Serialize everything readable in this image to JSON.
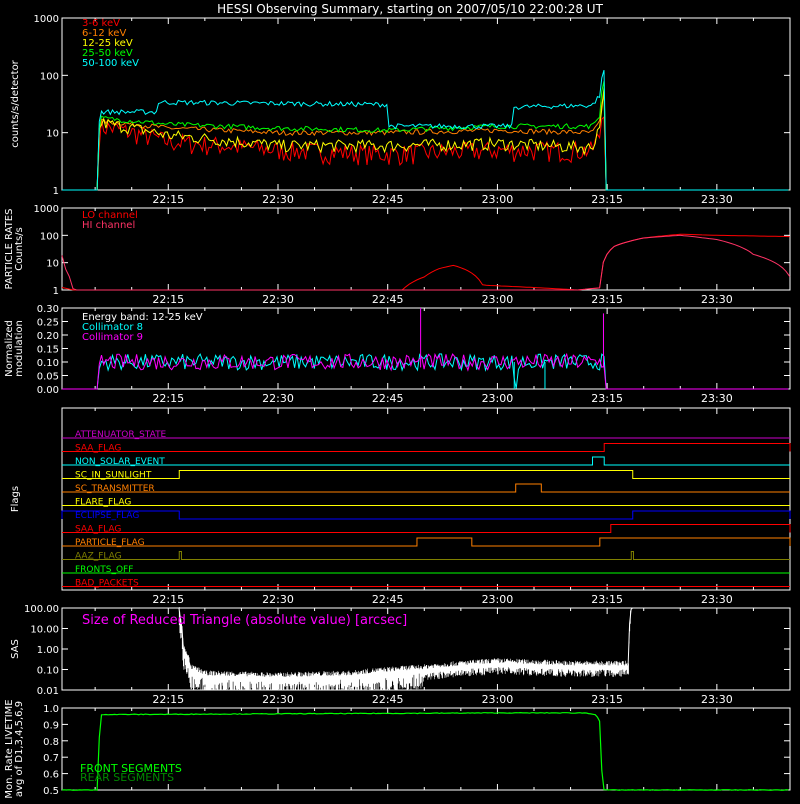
{
  "title": "HESSI Observing Summary, starting on 2007/05/10 22:00:28 UT",
  "time_axis": {
    "ticks": [
      "22:15",
      "22:30",
      "22:45",
      "23:00",
      "23:15",
      "23:30"
    ],
    "tick_minutes": [
      15,
      30,
      45,
      60,
      75,
      90
    ],
    "range_minutes": [
      0.47,
      100
    ]
  },
  "colors": {
    "c3_6": "#ff0000",
    "c6_12": "#ff7f00",
    "c12_25": "#ffff00",
    "c25_50": "#00ff00",
    "c50_100": "#00ffff",
    "lo": "#ff0000",
    "hi": "#ff3366",
    "coll8": "#00ffff",
    "coll9": "#ff00ff",
    "energy": "#ffffff",
    "sas_label": "#ff00ff",
    "front": "#00ff00",
    "rear": "#008800"
  },
  "chart_data": [
    {
      "id": "count_rates",
      "type": "line",
      "ylabel": "counts/s/detector",
      "yscale": "log",
      "ylim": [
        1,
        1000
      ],
      "y_ticks": [
        "1",
        "10",
        "100",
        "1000"
      ],
      "series": [
        {
          "name": "3-6 keV",
          "color": "#ff0000",
          "x": [
            0,
            5.5,
            5.6,
            15,
            30,
            45,
            60,
            73,
            74,
            74.6,
            74.7,
            100
          ],
          "y": [
            1,
            1,
            13,
            7,
            5,
            4.3,
            5,
            5,
            9,
            30,
            1,
            1
          ]
        },
        {
          "name": "6-12 keV",
          "color": "#ff7f00",
          "x": [
            0,
            5.5,
            5.6,
            15,
            30,
            45,
            60,
            73,
            74,
            74.6,
            74.7,
            100
          ],
          "y": [
            1,
            1,
            16,
            12,
            10,
            10,
            11,
            10,
            15,
            50,
            1,
            1
          ]
        },
        {
          "name": "12-25 keV",
          "color": "#ffff00",
          "x": [
            0,
            5.5,
            5.6,
            15,
            30,
            45,
            60,
            73,
            74,
            74.6,
            74.7,
            100
          ],
          "y": [
            1,
            1,
            15,
            9,
            6,
            6,
            6.5,
            5.5,
            13,
            55,
            1,
            1
          ]
        },
        {
          "name": "25-50 keV",
          "color": "#00ff00",
          "x": [
            0,
            5.5,
            5.6,
            15,
            30,
            45,
            60,
            73,
            74,
            74.6,
            74.7,
            100
          ],
          "y": [
            1,
            1,
            18,
            14,
            12,
            11,
            13,
            13,
            20,
            90,
            1,
            1
          ]
        },
        {
          "name": "50-100 keV",
          "color": "#00ffff",
          "x": [
            0,
            5.5,
            5.6,
            13.5,
            13.6,
            45,
            45.1,
            62,
            62.1,
            73,
            74,
            74.6,
            74.7,
            100
          ],
          "y": [
            1,
            1,
            23,
            23,
            34,
            31,
            13,
            13,
            28,
            30,
            45,
            130,
            1,
            1
          ]
        }
      ]
    },
    {
      "id": "particle_rates",
      "type": "line",
      "ylabel": "PARTICLE RATES Counts/s",
      "yscale": "log",
      "ylim": [
        1,
        1000
      ],
      "y_ticks": [
        "1",
        "10",
        "100",
        "1000"
      ],
      "series": [
        {
          "name": "LO channel",
          "color": "#ff0000",
          "x": [
            0,
            2,
            5,
            47,
            50,
            52,
            54,
            56,
            58,
            71,
            74,
            76,
            80,
            85,
            90,
            100
          ],
          "y": [
            1.3,
            1,
            1,
            1,
            3,
            6,
            8,
            5,
            1.5,
            1,
            1.2,
            40,
            80,
            110,
            100,
            90
          ]
        },
        {
          "name": "HI channel",
          "color": "#ff3366",
          "x": [
            0,
            1,
            2,
            5,
            71,
            74,
            76,
            80,
            85,
            90,
            95,
            100
          ],
          "y": [
            30,
            5,
            1,
            1,
            1,
            1.2,
            40,
            80,
            100,
            70,
            20,
            3
          ]
        }
      ]
    },
    {
      "id": "modulation",
      "type": "line",
      "ylabel": "Normalized modulation",
      "ylim": [
        0,
        0.3
      ],
      "y_ticks": [
        "0.00",
        "0.05",
        "0.10",
        "0.15",
        "0.20",
        "0.25",
        "0.30"
      ],
      "series": [
        {
          "name": "Energy band: 12-25 keV",
          "color": "#ffffff"
        },
        {
          "name": "Collimator 8",
          "color": "#00ffff",
          "x": [
            0,
            5.5,
            5.6,
            62,
            62.5,
            63,
            74.6,
            74.7,
            100
          ],
          "y": [
            0,
            0,
            0.1,
            0.1,
            0.0,
            0.1,
            0.1,
            0,
            0
          ],
          "dips": [
            62.3,
            66.5
          ]
        },
        {
          "name": "Collimator 9",
          "color": "#ff00ff",
          "x": [
            0,
            5.5,
            5.6,
            74.6,
            74.7,
            100
          ],
          "y": [
            0,
            0,
            0.1,
            0.1,
            0,
            0
          ],
          "spikes": [
            {
              "x": 49.5,
              "y": 0.3
            },
            {
              "x": 74.5,
              "y": 0.28
            }
          ]
        }
      ]
    },
    {
      "id": "flags",
      "type": "line",
      "ylabel": "Flags",
      "series": [
        {
          "name": "ATTENUATOR_STATE",
          "color": "#cc00cc",
          "steps": []
        },
        {
          "name": "SAA_FLAG",
          "label": "SAA_FLAG",
          "color": "#ff0000",
          "steps": [
            [
              74.6,
              100
            ]
          ]
        },
        {
          "name": "NON_SOLAR_EVENT",
          "color": "#00ffff",
          "steps": [
            [
              73,
              74.6
            ]
          ]
        },
        {
          "name": "SC_IN_SUNLIGHT",
          "color": "#ffff00",
          "steps": [
            [
              16.5,
              78.5
            ]
          ]
        },
        {
          "name": "SC_TRANSMITTER",
          "color": "#ff7f00",
          "steps": [
            [
              62.5,
              66
            ]
          ]
        },
        {
          "name": "FLARE_FLAG",
          "color": "#ffff00",
          "steps": []
        },
        {
          "name": "ECLIPSE_FLAG",
          "color": "#0000ff",
          "steps": [
            [
              0,
              16.5
            ],
            [
              78.5,
              100
            ]
          ]
        },
        {
          "name": "SAA_FLAG",
          "color": "#ff0000",
          "steps": [
            [
              75.5,
              100
            ]
          ]
        },
        {
          "name": "PARTICLE_FLAG",
          "color": "#ff7f00",
          "steps": [
            [
              49,
              56.5
            ],
            [
              74,
              100
            ]
          ]
        },
        {
          "name": "AAZ_FLAG",
          "color": "#808000",
          "steps": [
            [
              16.5,
              16.8
            ],
            [
              78.3,
              78.6
            ]
          ]
        },
        {
          "name": "FRONTS_OFF",
          "color": "#00ff00",
          "steps": []
        },
        {
          "name": "BAD_PACKETS",
          "color": "#ff0000",
          "steps": []
        }
      ]
    },
    {
      "id": "sas",
      "type": "line",
      "ylabel": "SAS",
      "yscale": "log",
      "ylim": [
        0.01,
        100
      ],
      "y_ticks": [
        "0.01",
        "0.10",
        "1.00",
        "10.00",
        "100.00"
      ],
      "series": [
        {
          "name": "Size of Reduced Triangle (absolute value) [arcsec]",
          "color": "#ffffff",
          "x": [
            16.5,
            16.6,
            17,
            18,
            20,
            30,
            40,
            50,
            55,
            60,
            70,
            78,
            78.2,
            78.3
          ],
          "y": [
            100,
            30,
            1,
            0.1,
            0.05,
            0.04,
            0.05,
            0.1,
            0.15,
            0.2,
            0.15,
            0.15,
            50,
            100
          ]
        }
      ]
    },
    {
      "id": "livetime",
      "type": "line",
      "ylabel": "Mon. Rate LIVETIME avg of D1,3,4,5,6,9",
      "ylim": [
        0.5,
        1.0
      ],
      "y_ticks": [
        "0.5",
        "0.6",
        "0.7",
        "0.8",
        "0.9",
        "1.0"
      ],
      "series": [
        {
          "name": "FRONT SEGMENTS",
          "color": "#00ff00",
          "x": [
            0,
            5.5,
            5.6,
            60,
            72,
            73.5,
            74.2,
            74.3,
            100
          ],
          "y": [
            0.5,
            0.5,
            0.96,
            0.97,
            0.97,
            0.96,
            0.9,
            0.5,
            0.5
          ]
        },
        {
          "name": "REAR SEGMENTS",
          "color": "#008800"
        }
      ]
    }
  ]
}
